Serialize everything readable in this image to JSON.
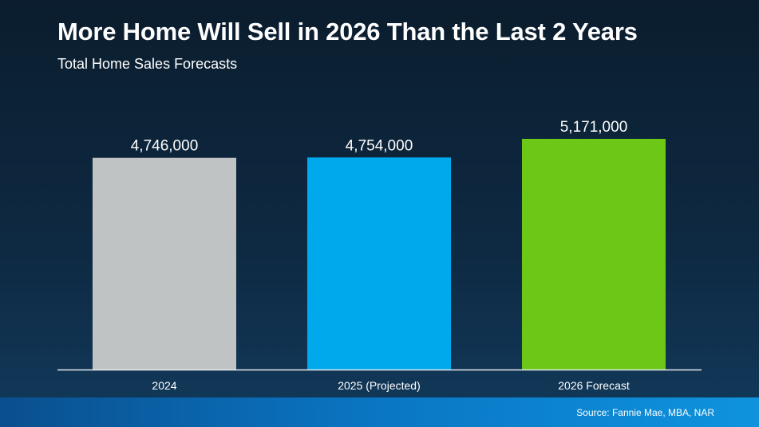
{
  "chart_data": {
    "type": "bar",
    "title": "More Home Will Sell in 2026 Than the Last 2 Years",
    "subtitle": "Total Home Sales Forecasts",
    "categories": [
      "2024",
      "2025 (Projected)",
      "2026 Forecast"
    ],
    "values": [
      4746000,
      4754000,
      5171000
    ],
    "value_labels": [
      "4,746,000",
      "4,754,000",
      "5,171,000"
    ],
    "colors": [
      "#c0c3c4",
      "#00a9ec",
      "#6cc716"
    ],
    "xlabel": "",
    "ylabel": "",
    "ylim": [
      0,
      5600000
    ],
    "grid": false
  },
  "footer": {
    "source": "Source: Fannie Mae, MBA, NAR"
  }
}
